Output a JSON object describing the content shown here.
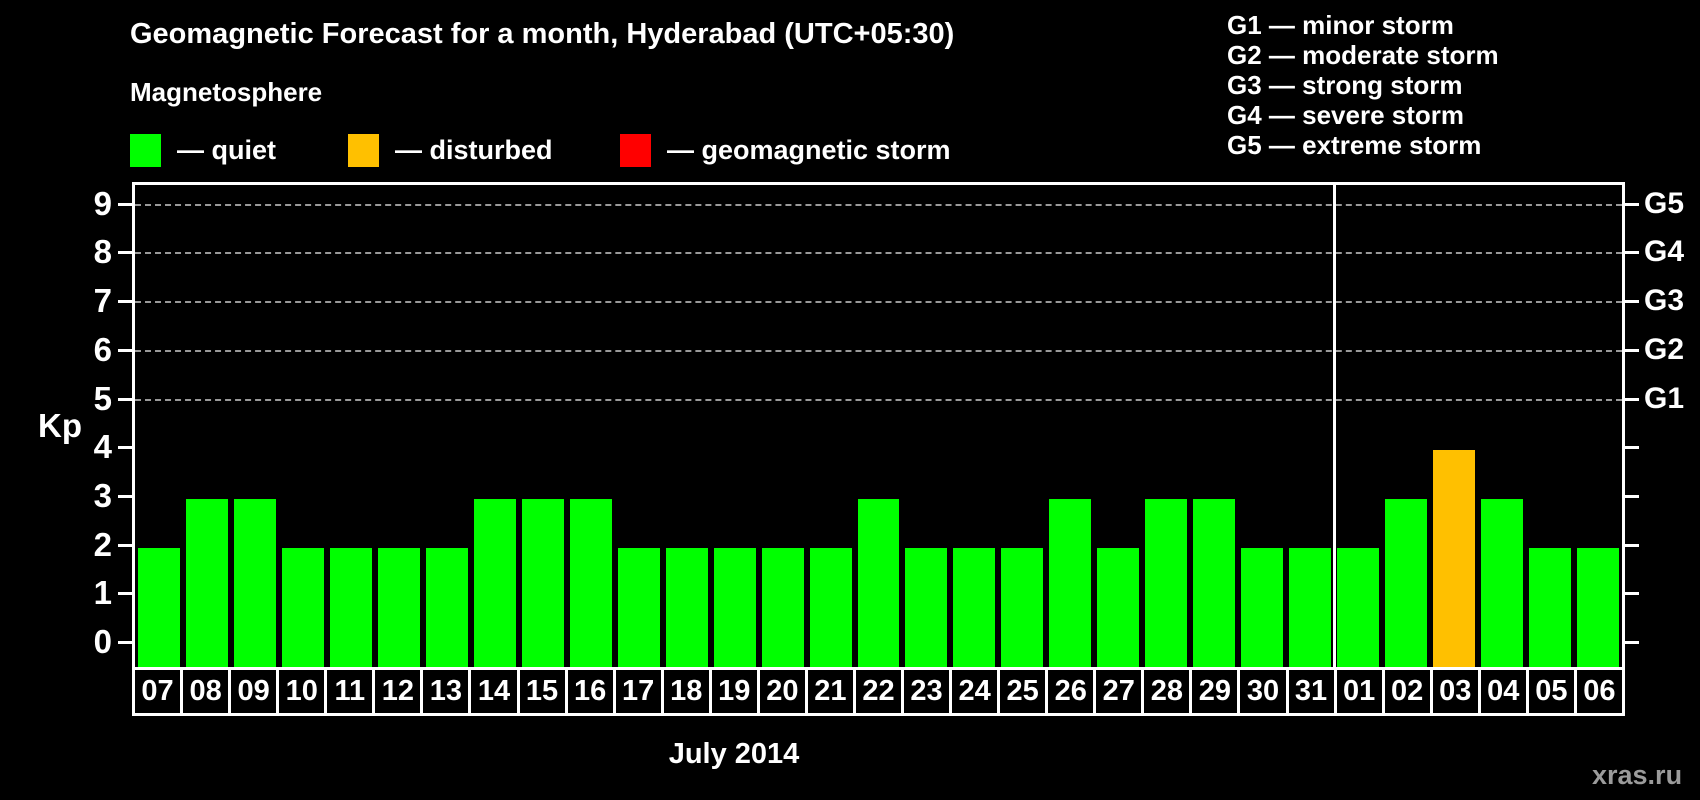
{
  "header": {
    "title": "Geomagnetic Forecast for a month, Hyderabad (UTC+05:30)"
  },
  "magnetosphere_legend": {
    "heading": "Magnetosphere",
    "items": [
      {
        "status": "quiet",
        "label": "— quiet",
        "color": "#00ff00"
      },
      {
        "status": "disturbed",
        "label": "— disturbed",
        "color": "#ffc000"
      },
      {
        "status": "storm",
        "label": "— geomagnetic storm",
        "color": "#ff0000"
      }
    ]
  },
  "g_scale_legend": [
    "G1 — minor storm",
    "G2 — moderate storm",
    "G3 — strong storm",
    "G4 — severe storm",
    "G5 — extreme storm"
  ],
  "status_colors": {
    "quiet": "#00ff00",
    "disturbed": "#ffc000",
    "storm": "#ff0000"
  },
  "chart_data": {
    "type": "bar",
    "title": "Geomagnetic Forecast for a month, Hyderabad (UTC+05:30)",
    "ylabel": "Kp",
    "xlabel": "July 2014",
    "ylim": [
      0,
      9
    ],
    "yticks": [
      0,
      1,
      2,
      3,
      4,
      5,
      6,
      7,
      8,
      9
    ],
    "grid": "horizontal dashed lines at storm levels only",
    "gridlines_at_kp": [
      5,
      6,
      7,
      8,
      9
    ],
    "right_axis_labels": [
      {
        "label": "G5",
        "kp": 9
      },
      {
        "label": "G4",
        "kp": 8
      },
      {
        "label": "G3",
        "kp": 7
      },
      {
        "label": "G2",
        "kp": 6
      },
      {
        "label": "G1",
        "kp": 5
      }
    ],
    "categories": [
      "07",
      "08",
      "09",
      "10",
      "11",
      "12",
      "13",
      "14",
      "15",
      "16",
      "17",
      "18",
      "19",
      "20",
      "21",
      "22",
      "23",
      "24",
      "25",
      "26",
      "27",
      "28",
      "29",
      "30",
      "31",
      "01",
      "02",
      "03",
      "04",
      "05",
      "06"
    ],
    "series": [
      {
        "name": "Kp forecast",
        "values": [
          2,
          3,
          3,
          2,
          2,
          2,
          2,
          3,
          3,
          3,
          2,
          2,
          2,
          2,
          2,
          3,
          2,
          2,
          2,
          3,
          2,
          3,
          3,
          2,
          2,
          2,
          3,
          4,
          3,
          2,
          2
        ]
      }
    ],
    "bar_status": [
      "quiet",
      "quiet",
      "quiet",
      "quiet",
      "quiet",
      "quiet",
      "quiet",
      "quiet",
      "quiet",
      "quiet",
      "quiet",
      "quiet",
      "quiet",
      "quiet",
      "quiet",
      "quiet",
      "quiet",
      "quiet",
      "quiet",
      "quiet",
      "quiet",
      "quiet",
      "quiet",
      "quiet",
      "quiet",
      "quiet",
      "quiet",
      "disturbed",
      "quiet",
      "quiet",
      "quiet"
    ],
    "month_boundary_after_index": 24,
    "legend_position": "top-left"
  },
  "footer": {
    "month_label": "July 2014",
    "watermark": "xras.ru"
  }
}
